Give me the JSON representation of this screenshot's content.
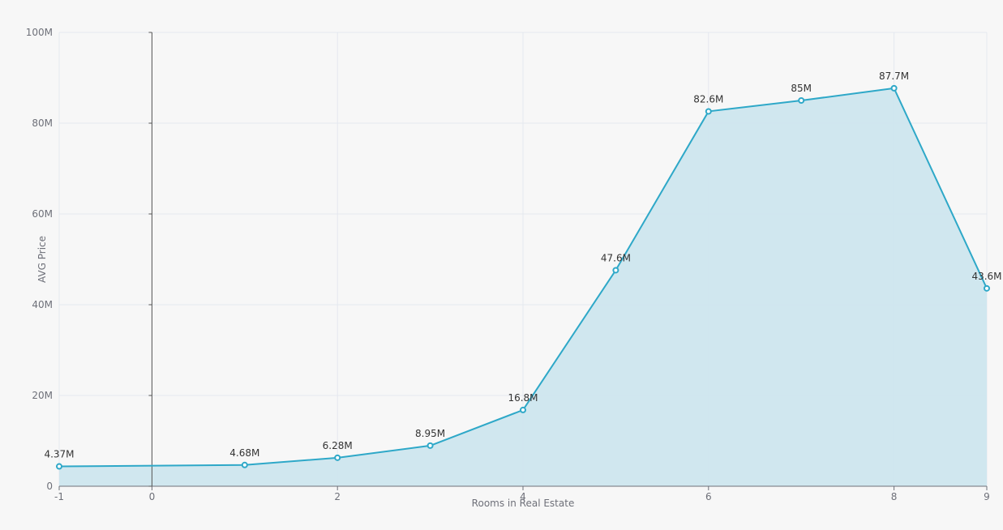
{
  "chart_data": {
    "type": "area",
    "title": "",
    "xlabel": "Rooms in Real Estate",
    "ylabel": "AVG Price",
    "xlim": [
      -1,
      9
    ],
    "ylim": [
      0,
      100000000
    ],
    "x_ticks": [
      -1,
      0,
      2,
      4,
      6,
      8,
      9
    ],
    "x_tick_labels": [
      "-1",
      "0",
      "2",
      "4",
      "6",
      "8",
      "9"
    ],
    "y_ticks": [
      0,
      20000000,
      40000000,
      60000000,
      80000000,
      100000000
    ],
    "y_tick_labels": [
      "0",
      "20M",
      "40M",
      "60M",
      "80M",
      "100M"
    ],
    "grid": true,
    "legend": "none",
    "series": [
      {
        "x": [
          -1,
          1,
          2,
          3,
          4,
          5,
          6,
          7,
          8,
          9
        ],
        "values": [
          4370000,
          4680000,
          6280000,
          8950000,
          16800000,
          47600000,
          82600000,
          85000000,
          87700000,
          43600000
        ],
        "data_labels": [
          "4.37M",
          "4.68M",
          "6.28M",
          "8.95M",
          "16.8M",
          "47.6M",
          "82.6M",
          "85M",
          "87.7M",
          "43.6M"
        ]
      }
    ],
    "colors": {
      "line": "#2ea8c8",
      "area": "#cde6ee",
      "grid": "#e4e8ef",
      "axis": "#6e7079",
      "zero_axis": "#555555",
      "point_fill": "#ffffff"
    }
  }
}
